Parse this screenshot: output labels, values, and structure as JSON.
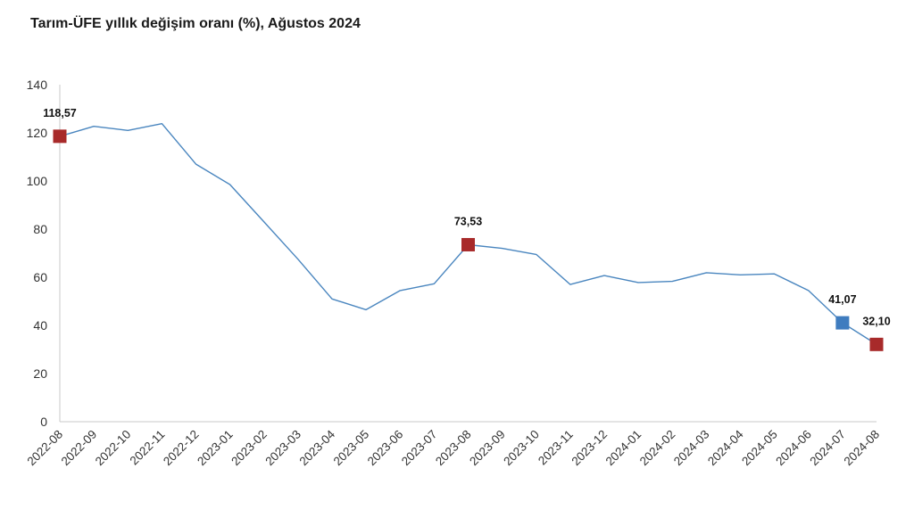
{
  "chart_data": {
    "type": "line",
    "title": "Tarım-ÜFE yıllık değişim oranı (%), Ağustos 2024",
    "xlabel": "",
    "ylabel": "",
    "ylim": [
      0,
      140
    ],
    "yticks": [
      "0",
      "20",
      "40",
      "60",
      "80",
      "100",
      "120",
      "140"
    ],
    "grid": false,
    "legend": "none",
    "categories": [
      "2022-08",
      "2022-09",
      "2022-10",
      "2022-11",
      "2022-12",
      "2023-01",
      "2023-02",
      "2023-03",
      "2023-04",
      "2023-05",
      "2023-06",
      "2023-07",
      "2023-08",
      "2023-09",
      "2023-10",
      "2023-11",
      "2023-12",
      "2024-01",
      "2024-02",
      "2024-03",
      "2024-04",
      "2024-05",
      "2024-06",
      "2024-07",
      "2024-08"
    ],
    "series": [
      {
        "values": [
          118.57,
          122.7,
          121.0,
          123.8,
          107.0,
          98.5,
          83.0,
          67.5,
          51.0,
          46.5,
          54.5,
          57.3,
          73.53,
          72.0,
          69.5,
          57.0,
          60.7,
          57.8,
          58.3,
          61.9,
          61.0,
          61.4,
          54.5,
          41.07,
          32.1
        ],
        "color": "#4a86bf"
      }
    ],
    "highlights": [
      {
        "index": 0,
        "label": "118,57",
        "color": "#a82a2a"
      },
      {
        "index": 12,
        "label": "73,53",
        "color": "#a82a2a"
      },
      {
        "index": 23,
        "label": "41,07",
        "color": "#3f7cbf"
      },
      {
        "index": 24,
        "label": "32,10",
        "color": "#a82a2a"
      }
    ]
  }
}
